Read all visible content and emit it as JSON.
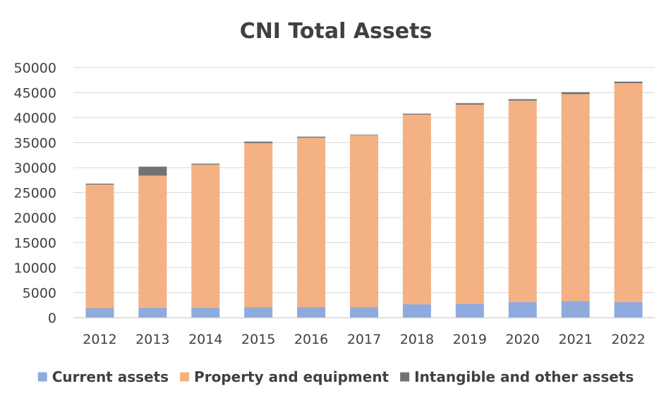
{
  "chart_data": {
    "type": "bar",
    "stacked": true,
    "title": "CNI Total Assets",
    "xlabel": "",
    "ylabel": "",
    "ylim": [
      0,
      50000
    ],
    "y_ticks": [
      "0",
      "5000",
      "10000",
      "15000",
      "20000",
      "25000",
      "30000",
      "35000",
      "40000",
      "45000",
      "50000"
    ],
    "grid": true,
    "legend_position": "bottom",
    "categories": [
      "2012",
      "2013",
      "2014",
      "2015",
      "2016",
      "2017",
      "2018",
      "2019",
      "2020",
      "2021",
      "2022"
    ],
    "series": [
      {
        "name": "Current assets",
        "color": "#8faadc",
        "values": [
          1900,
          2000,
          2000,
          2100,
          2100,
          2100,
          2700,
          2800,
          3100,
          3300,
          3100
        ]
      },
      {
        "name": "Property and equipment",
        "color": "#f4b183",
        "values": [
          24700,
          26400,
          28600,
          32800,
          33900,
          34400,
          37900,
          39800,
          40300,
          41400,
          43800
        ]
      },
      {
        "name": "Intangible and other assets",
        "color": "#767171",
        "values": [
          200,
          1800,
          200,
          300,
          200,
          100,
          200,
          300,
          300,
          400,
          300
        ]
      }
    ]
  }
}
